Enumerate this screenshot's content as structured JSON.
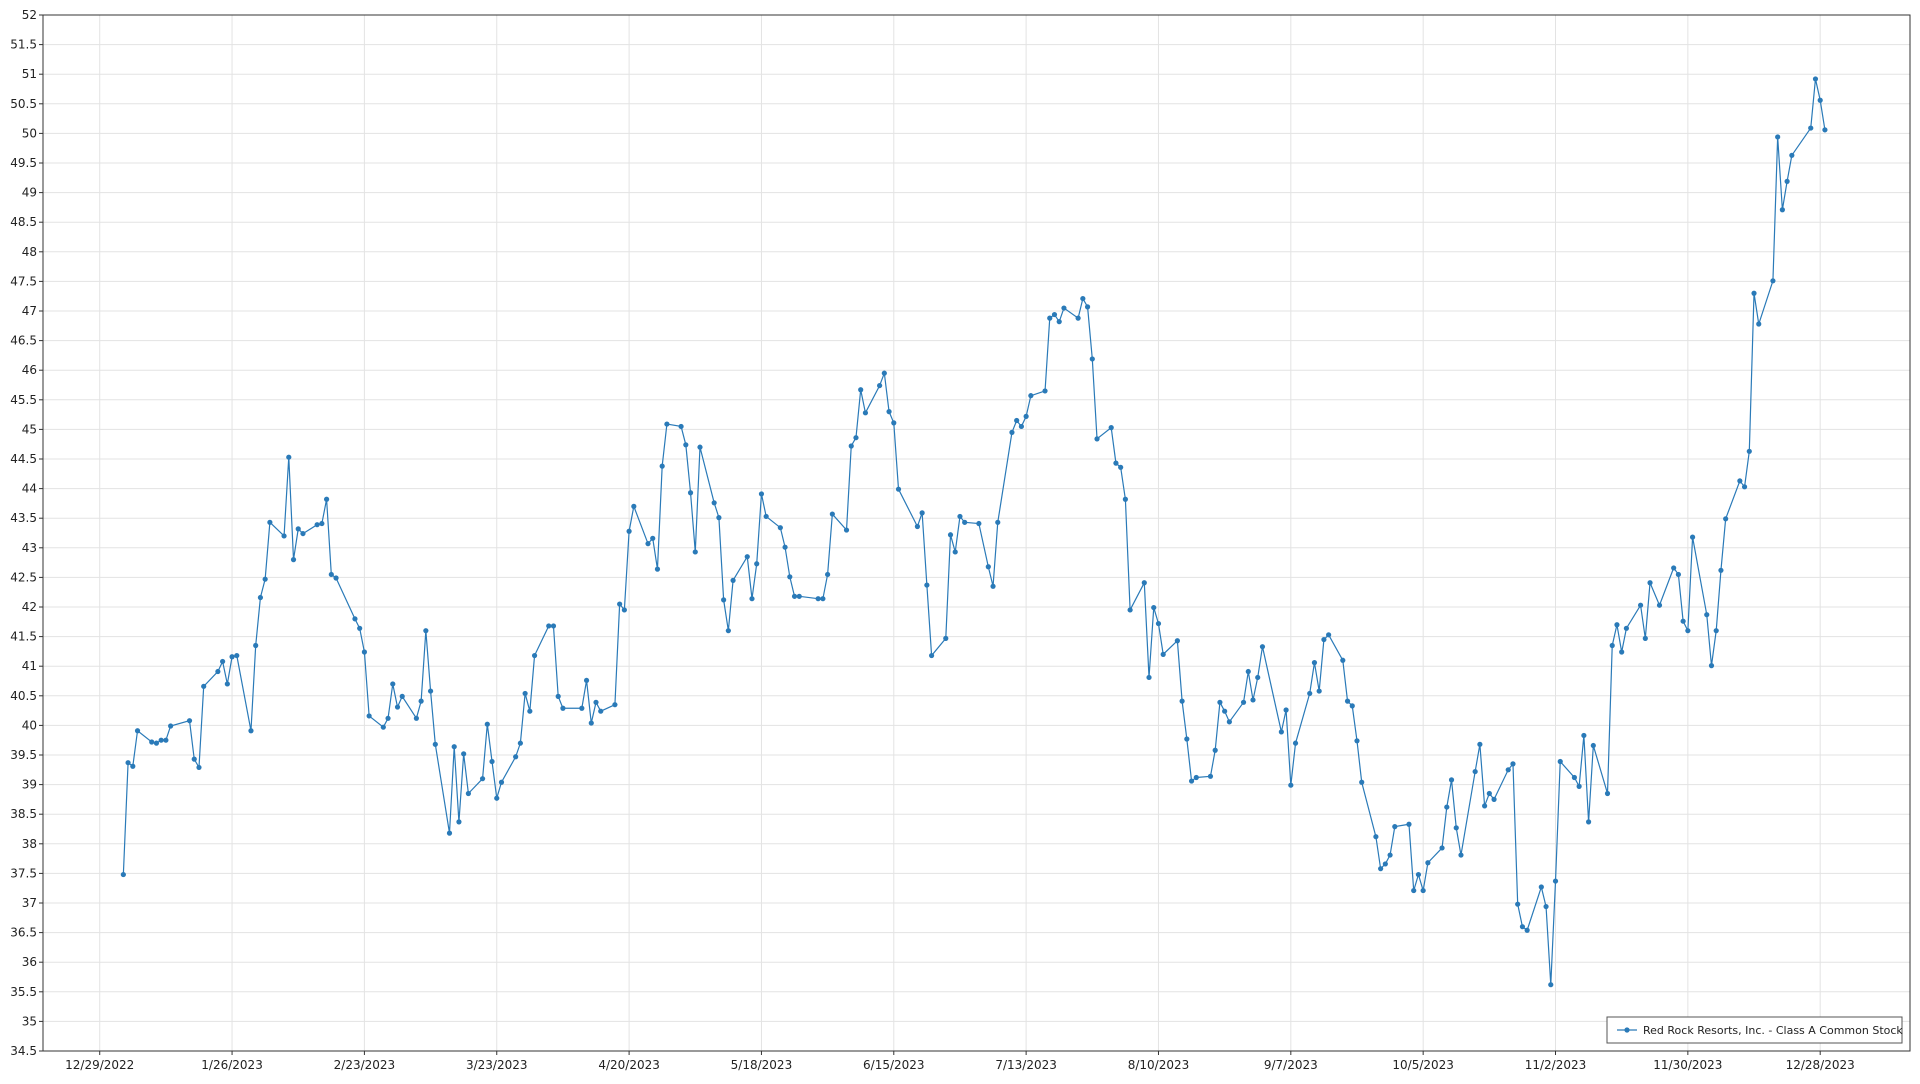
{
  "chart_data": {
    "type": "line",
    "x": [
      "1/3/2023",
      "1/4/2023",
      "1/5/2023",
      "1/6/2023",
      "1/9/2023",
      "1/10/2023",
      "1/11/2023",
      "1/12/2023",
      "1/13/2023",
      "1/17/2023",
      "1/18/2023",
      "1/19/2023",
      "1/20/2023",
      "1/23/2023",
      "1/24/2023",
      "1/25/2023",
      "1/26/2023",
      "1/27/2023",
      "1/30/2023",
      "1/31/2023",
      "2/1/2023",
      "2/2/2023",
      "2/3/2023",
      "2/6/2023",
      "2/7/2023",
      "2/8/2023",
      "2/9/2023",
      "2/10/2023",
      "2/13/2023",
      "2/14/2023",
      "2/15/2023",
      "2/16/2023",
      "2/17/2023",
      "2/21/2023",
      "2/22/2023",
      "2/23/2023",
      "2/24/2023",
      "2/27/2023",
      "2/28/2023",
      "3/1/2023",
      "3/2/2023",
      "3/3/2023",
      "3/6/2023",
      "3/7/2023",
      "3/8/2023",
      "3/9/2023",
      "3/10/2023",
      "3/13/2023",
      "3/14/2023",
      "3/15/2023",
      "3/16/2023",
      "3/17/2023",
      "3/20/2023",
      "3/21/2023",
      "3/22/2023",
      "3/23/2023",
      "3/24/2023",
      "3/27/2023",
      "3/28/2023",
      "3/29/2023",
      "3/30/2023",
      "3/31/2023",
      "4/3/2023",
      "4/4/2023",
      "4/5/2023",
      "4/6/2023",
      "4/10/2023",
      "4/11/2023",
      "4/12/2023",
      "4/13/2023",
      "4/14/2023",
      "4/17/2023",
      "4/18/2023",
      "4/19/2023",
      "4/20/2023",
      "4/21/2023",
      "4/24/2023",
      "4/25/2023",
      "4/26/2023",
      "4/27/2023",
      "4/28/2023",
      "5/1/2023",
      "5/2/2023",
      "5/3/2023",
      "5/4/2023",
      "5/5/2023",
      "5/8/2023",
      "5/9/2023",
      "5/10/2023",
      "5/11/2023",
      "5/12/2023",
      "5/15/2023",
      "5/16/2023",
      "5/17/2023",
      "5/18/2023",
      "5/19/2023",
      "5/22/2023",
      "5/23/2023",
      "5/24/2023",
      "5/25/2023",
      "5/26/2023",
      "5/30/2023",
      "5/31/2023",
      "6/1/2023",
      "6/2/2023",
      "6/5/2023",
      "6/6/2023",
      "6/7/2023",
      "6/8/2023",
      "6/9/2023",
      "6/12/2023",
      "6/13/2023",
      "6/14/2023",
      "6/15/2023",
      "6/16/2023",
      "6/20/2023",
      "6/21/2023",
      "6/22/2023",
      "6/23/2023",
      "6/26/2023",
      "6/27/2023",
      "6/28/2023",
      "6/29/2023",
      "6/30/2023",
      "7/3/2023",
      "7/5/2023",
      "7/6/2023",
      "7/7/2023",
      "7/10/2023",
      "7/11/2023",
      "7/12/2023",
      "7/13/2023",
      "7/14/2023",
      "7/17/2023",
      "7/18/2023",
      "7/19/2023",
      "7/20/2023",
      "7/21/2023",
      "7/24/2023",
      "7/25/2023",
      "7/26/2023",
      "7/27/2023",
      "7/28/2023",
      "7/31/2023",
      "8/1/2023",
      "8/2/2023",
      "8/3/2023",
      "8/4/2023",
      "8/7/2023",
      "8/8/2023",
      "8/9/2023",
      "8/10/2023",
      "8/11/2023",
      "8/14/2023",
      "8/15/2023",
      "8/16/2023",
      "8/17/2023",
      "8/18/2023",
      "8/21/2023",
      "8/22/2023",
      "8/23/2023",
      "8/24/2023",
      "8/25/2023",
      "8/28/2023",
      "8/29/2023",
      "8/30/2023",
      "8/31/2023",
      "9/1/2023",
      "9/5/2023",
      "9/6/2023",
      "9/7/2023",
      "9/8/2023",
      "9/11/2023",
      "9/12/2023",
      "9/13/2023",
      "9/14/2023",
      "9/15/2023",
      "9/18/2023",
      "9/19/2023",
      "9/20/2023",
      "9/21/2023",
      "9/22/2023",
      "9/25/2023",
      "9/26/2023",
      "9/27/2023",
      "9/28/2023",
      "9/29/2023",
      "10/2/2023",
      "10/3/2023",
      "10/4/2023",
      "10/5/2023",
      "10/6/2023",
      "10/9/2023",
      "10/10/2023",
      "10/11/2023",
      "10/12/2023",
      "10/13/2023",
      "10/16/2023",
      "10/17/2023",
      "10/18/2023",
      "10/19/2023",
      "10/20/2023",
      "10/23/2023",
      "10/24/2023",
      "10/25/2023",
      "10/26/2023",
      "10/27/2023",
      "10/30/2023",
      "10/31/2023",
      "11/1/2023",
      "11/2/2023",
      "11/3/2023",
      "11/6/2023",
      "11/7/2023",
      "11/8/2023",
      "11/9/2023",
      "11/10/2023",
      "11/13/2023",
      "11/14/2023",
      "11/15/2023",
      "11/16/2023",
      "11/17/2023",
      "11/20/2023",
      "11/21/2023",
      "11/22/2023",
      "11/24/2023",
      "11/27/2023",
      "11/28/2023",
      "11/29/2023",
      "11/30/2023",
      "12/1/2023",
      "12/4/2023",
      "12/5/2023",
      "12/6/2023",
      "12/7/2023",
      "12/8/2023",
      "12/11/2023",
      "12/12/2023",
      "12/13/2023",
      "12/14/2023",
      "12/15/2023",
      "12/18/2023",
      "12/19/2023",
      "12/20/2023",
      "12/21/2023",
      "12/22/2023",
      "12/26/2023",
      "12/27/2023",
      "12/28/2023",
      "12/29/2023"
    ],
    "series": [
      {
        "name": "Red Rock Resorts, Inc. - Class A Common Stock",
        "color": "#2a7ab8",
        "values": [
          37.48,
          39.37,
          39.31,
          39.91,
          39.72,
          39.7,
          39.75,
          39.75,
          39.99,
          40.08,
          39.43,
          39.29,
          40.66,
          40.91,
          41.08,
          40.7,
          41.16,
          41.18,
          39.91,
          41.35,
          42.16,
          42.47,
          43.43,
          43.2,
          44.53,
          42.8,
          43.32,
          43.24,
          43.39,
          43.41,
          43.82,
          42.55,
          42.49,
          41.8,
          41.64,
          41.24,
          40.16,
          39.97,
          40.12,
          40.7,
          40.31,
          40.49,
          40.12,
          40.41,
          41.6,
          40.58,
          39.68,
          38.18,
          39.64,
          38.37,
          39.52,
          38.85,
          39.1,
          40.02,
          39.39,
          38.77,
          39.04,
          39.47,
          39.7,
          40.54,
          40.24,
          41.18,
          41.68,
          41.68,
          40.49,
          40.29,
          40.29,
          40.76,
          40.04,
          40.39,
          40.24,
          40.35,
          42.05,
          41.95,
          43.28,
          43.7,
          43.07,
          43.16,
          42.64,
          44.38,
          45.09,
          45.05,
          44.74,
          43.93,
          42.93,
          44.7,
          43.76,
          43.51,
          42.12,
          41.6,
          42.45,
          42.85,
          42.14,
          42.73,
          43.91,
          43.53,
          43.34,
          43.01,
          42.51,
          42.18,
          42.18,
          42.14,
          42.14,
          42.55,
          43.57,
          43.3,
          44.72,
          44.86,
          45.67,
          45.28,
          45.74,
          45.95,
          45.3,
          45.11,
          43.99,
          43.36,
          43.59,
          42.37,
          41.18,
          41.47,
          43.22,
          42.93,
          43.53,
          43.43,
          43.41,
          42.68,
          42.35,
          43.43,
          44.95,
          45.15,
          45.05,
          45.22,
          45.57,
          45.65,
          46.88,
          46.94,
          46.82,
          47.05,
          46.88,
          47.21,
          47.07,
          46.19,
          44.84,
          45.03,
          44.43,
          44.36,
          43.82,
          41.95,
          42.41,
          40.81,
          41.99,
          41.72,
          41.2,
          41.43,
          40.41,
          39.77,
          39.06,
          39.12,
          39.14,
          39.58,
          40.39,
          40.24,
          40.06,
          40.39,
          40.91,
          40.43,
          40.81,
          41.33,
          39.89,
          40.26,
          38.99,
          39.7,
          40.54,
          41.06,
          40.58,
          41.45,
          41.53,
          41.1,
          40.41,
          40.33,
          39.74,
          39.04,
          38.12,
          37.58,
          37.66,
          37.81,
          38.29,
          38.33,
          37.21,
          37.48,
          37.21,
          37.68,
          37.93,
          38.62,
          39.08,
          38.27,
          37.81,
          39.22,
          39.68,
          38.64,
          38.85,
          38.75,
          39.25,
          39.35,
          36.98,
          36.6,
          36.54,
          37.27,
          36.94,
          35.62,
          37.37,
          39.39,
          39.12,
          38.97,
          39.83,
          38.37,
          39.66,
          38.85,
          41.35,
          41.7,
          41.24,
          41.64,
          42.03,
          41.47,
          42.41,
          42.03,
          42.66,
          42.55,
          41.76,
          41.6,
          43.18,
          41.87,
          41.01,
          41.6,
          42.62,
          43.49,
          44.13,
          44.03,
          44.63,
          47.3,
          46.78,
          47.51,
          49.94,
          48.71,
          49.19,
          49.63,
          50.09,
          50.92,
          50.56,
          50.06
        ]
      }
    ],
    "xlim": [
      "12/17/2022",
      "1/16/2024"
    ],
    "xticks": [
      "12/29/2022",
      "1/26/2023",
      "2/23/2023",
      "3/23/2023",
      "4/20/2023",
      "5/18/2023",
      "6/15/2023",
      "7/13/2023",
      "8/10/2023",
      "9/7/2023",
      "10/5/2023",
      "11/2/2023",
      "11/30/2023",
      "12/28/2023"
    ],
    "ylim": [
      34.5,
      52
    ],
    "yticks": [
      34.5,
      35,
      35.5,
      36,
      36.5,
      37,
      37.5,
      38,
      38.5,
      39,
      39.5,
      40,
      40.5,
      41,
      41.5,
      42,
      42.5,
      43,
      43.5,
      44,
      44.5,
      45,
      45.5,
      46,
      46.5,
      47,
      47.5,
      48,
      48.5,
      49,
      49.5,
      50,
      50.5,
      51,
      51.5,
      52
    ],
    "grid": true,
    "legend": "lower right"
  }
}
